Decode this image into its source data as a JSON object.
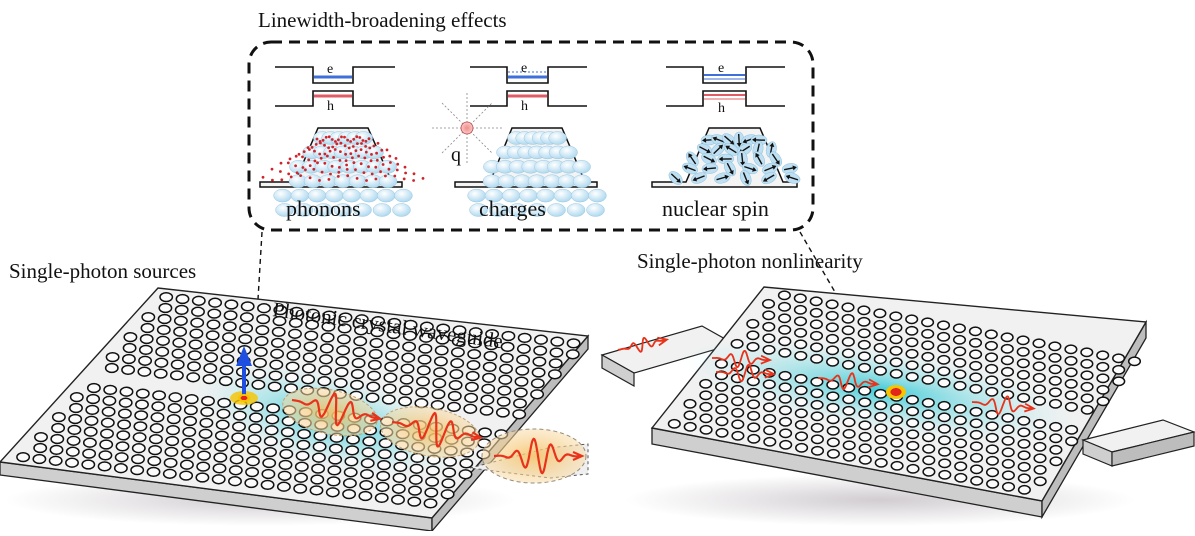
{
  "inset": {
    "title": "Linewidth-broadening effects",
    "panels": [
      {
        "label": "phonons",
        "e": "e",
        "h": "h",
        "e_color": "#3f6fd8",
        "h_color": "#e05b66"
      },
      {
        "label": "charges",
        "e": "e",
        "h": "h",
        "q": "q",
        "e_color": "#3f6fd8",
        "h_color": "#e05b66"
      },
      {
        "label": "nuclear spin",
        "e": "e",
        "h": "h",
        "e_color": "#3f6fd8",
        "h_color": "#e05b66"
      }
    ]
  },
  "left_device": {
    "title": "Single-photon sources",
    "waveguide_label": "Photonic crystal waveguide"
  },
  "right_device": {
    "title": "Single-photon nonlinearity"
  },
  "colors": {
    "mode_glow": "#33c9d6",
    "pulse": "#e8321a",
    "dipole_arrow": "#1f4fe0",
    "quantum_dot": "#f5b400"
  }
}
